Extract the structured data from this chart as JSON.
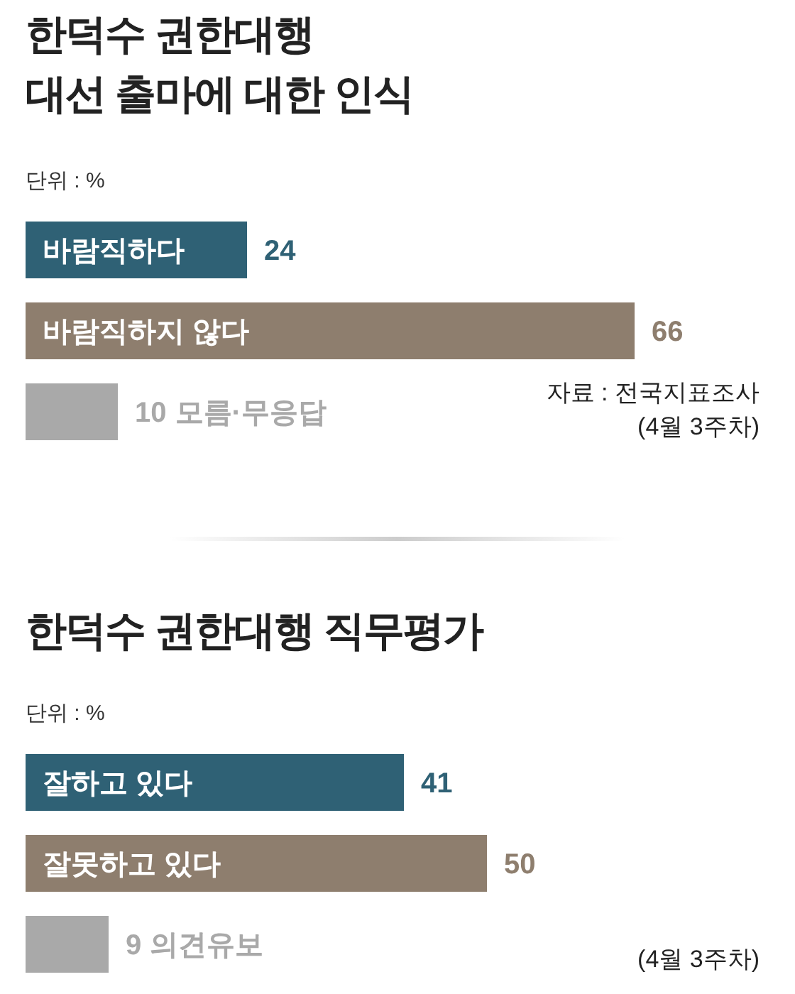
{
  "chart_data": [
    {
      "type": "bar",
      "orientation": "horizontal",
      "title": "한덕수 권한대행\n대선 출마에 대한 인식",
      "subtitle": "단위 : %",
      "categories": [
        "바람직하다",
        "바람직하지 않다",
        "모름·무응답"
      ],
      "values": [
        24,
        66,
        10
      ],
      "colors": [
        "#2f6175",
        "#8e7e6e",
        "#a9a9a9"
      ],
      "data_labels": true,
      "annotations": [
        "자료 : 전국지표조사",
        "(4월 3주차)"
      ]
    },
    {
      "type": "bar",
      "orientation": "horizontal",
      "title": "한덕수 권한대행 직무평가",
      "subtitle": "단위 : %",
      "categories": [
        "잘하고 있다",
        "잘못하고 있다",
        "의견유보"
      ],
      "values": [
        41,
        50,
        9
      ],
      "colors": [
        "#2f6175",
        "#8e7e6e",
        "#a9a9a9"
      ],
      "data_labels": true,
      "annotations": [
        "(4월 3주차)"
      ]
    }
  ]
}
